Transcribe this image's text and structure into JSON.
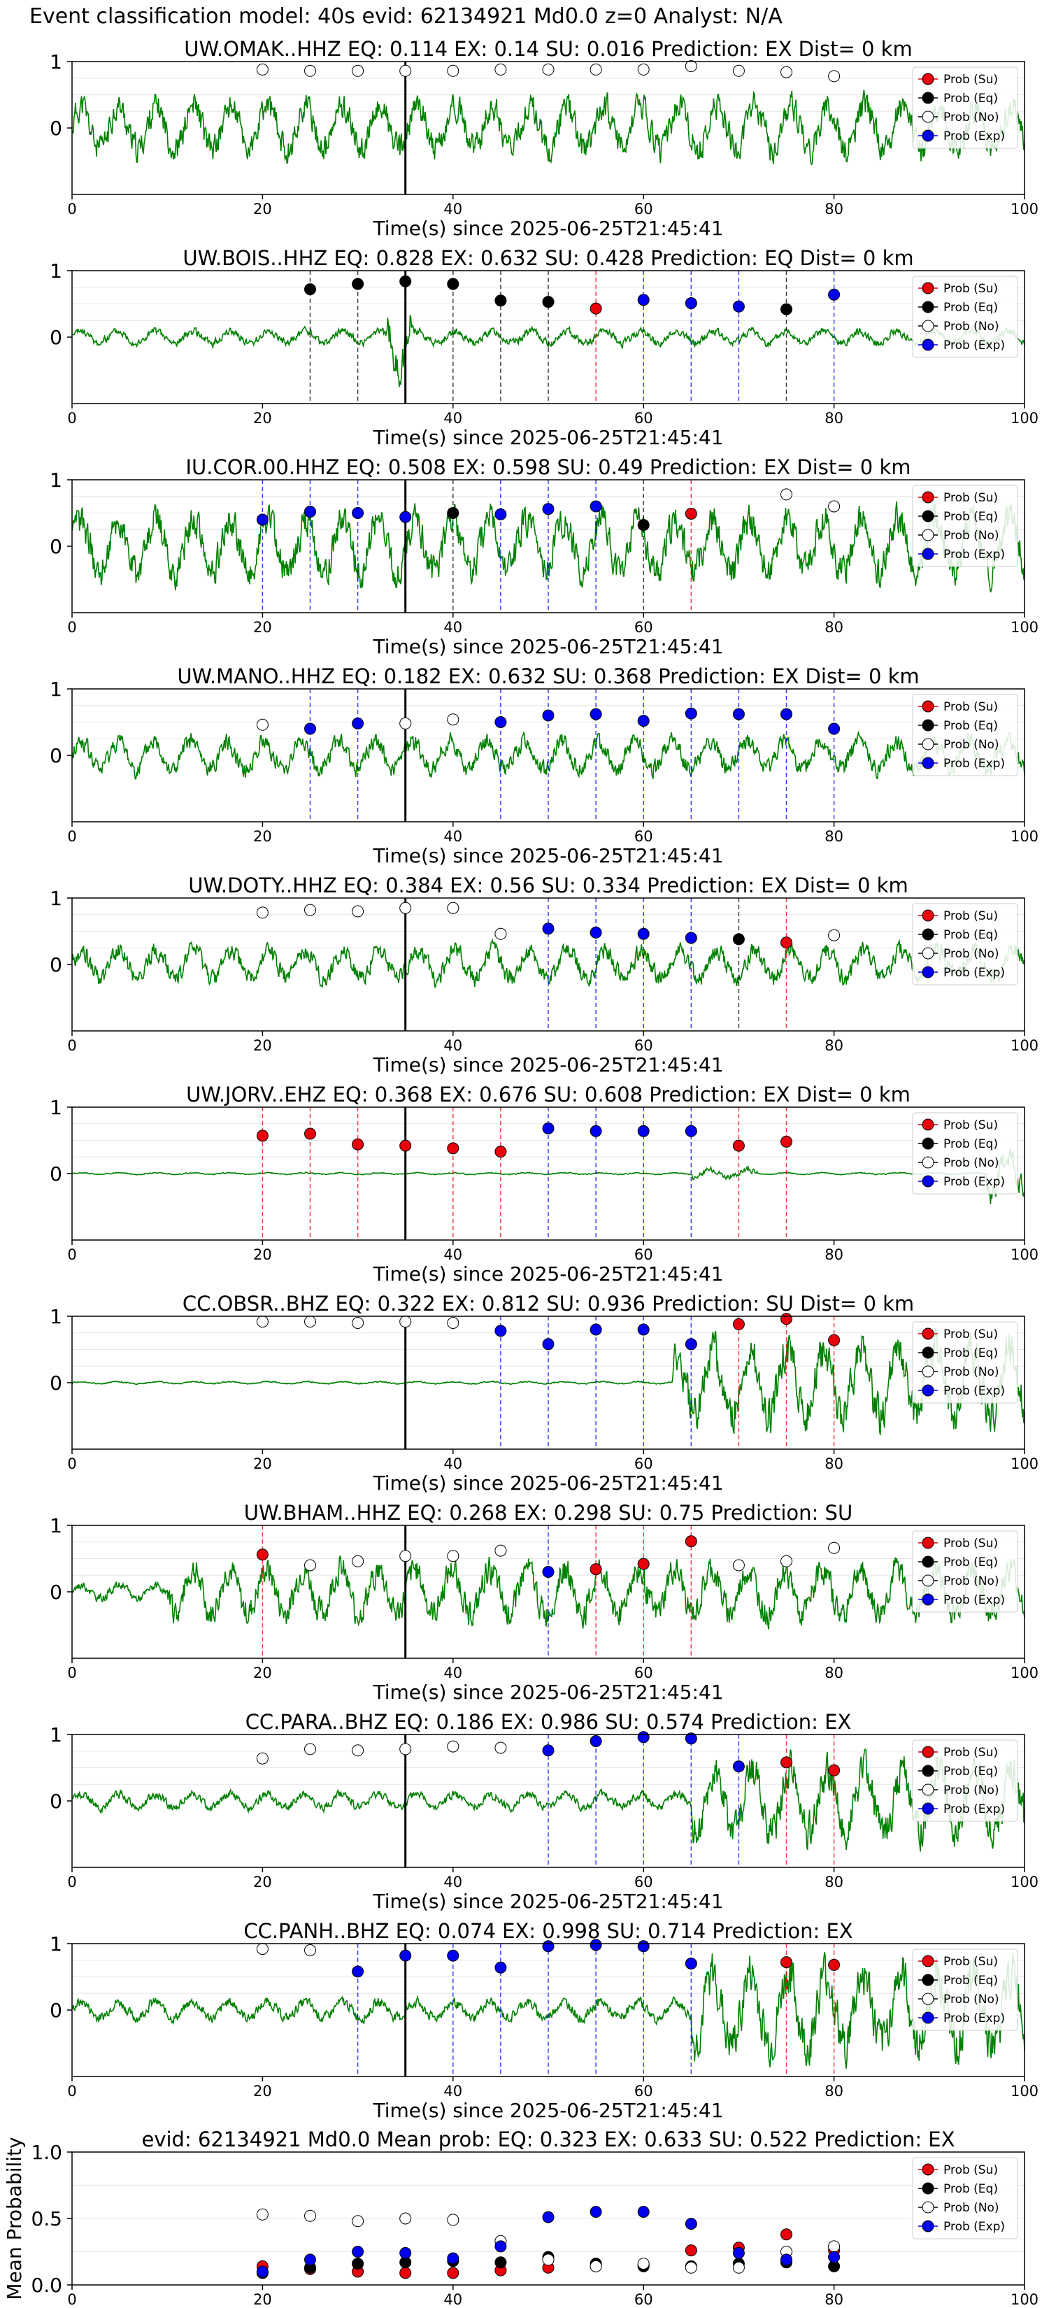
{
  "figure": {
    "suptitle": "Event classification model: 40s evid: 62134921 Md0.0 z=0 Analyst: N/A"
  },
  "legend_labels": [
    "Prob (Su)",
    "Prob (Eq)",
    "Prob (No)",
    "Prob (Exp)"
  ],
  "colors": {
    "Su": "#e8000b",
    "Eq": "#000000",
    "No": "#ffffff",
    "Exp": "#0000ee",
    "trace": "#008000",
    "event_line": "#000000"
  },
  "chart_data": [
    {
      "type": "scatter",
      "title": "UW.OMAK..HHZ   EQ: 0.114  EX: 0.14  SU: 0.016   Prediction: EX    Dist= 0 km",
      "xlabel": "Time(s) since 2025-06-25T21:45:41",
      "xlim": [
        0,
        100
      ],
      "ylim": [
        -1,
        1
      ],
      "yticks": [
        "1",
        "0"
      ],
      "xticks": [
        "0",
        "20",
        "40",
        "60",
        "80",
        "100"
      ],
      "event_time": 35,
      "waveform": {
        "style": "noisy",
        "amplitude": 0.55,
        "seed": 11
      },
      "points": [
        {
          "x": 20,
          "y": 0.88,
          "cls": "No"
        },
        {
          "x": 25,
          "y": 0.86,
          "cls": "No"
        },
        {
          "x": 30,
          "y": 0.86,
          "cls": "No"
        },
        {
          "x": 35,
          "y": 0.86,
          "cls": "No"
        },
        {
          "x": 40,
          "y": 0.86,
          "cls": "No"
        },
        {
          "x": 45,
          "y": 0.88,
          "cls": "No"
        },
        {
          "x": 50,
          "y": 0.88,
          "cls": "No"
        },
        {
          "x": 55,
          "y": 0.88,
          "cls": "No"
        },
        {
          "x": 60,
          "y": 0.88,
          "cls": "No"
        },
        {
          "x": 65,
          "y": 0.93,
          "cls": "No"
        },
        {
          "x": 70,
          "y": 0.86,
          "cls": "No"
        },
        {
          "x": 75,
          "y": 0.84,
          "cls": "No"
        },
        {
          "x": 80,
          "y": 0.78,
          "cls": "No"
        }
      ]
    },
    {
      "type": "scatter",
      "title": "UW.BOIS..HHZ   EQ: 0.828  EX: 0.632  SU: 0.428   Prediction: EQ    Dist= 0 km",
      "xlabel": "Time(s) since 2025-06-25T21:45:41",
      "xlim": [
        0,
        100
      ],
      "ylim": [
        -1,
        1
      ],
      "yticks": [
        "1",
        "0"
      ],
      "xticks": [
        "0",
        "20",
        "40",
        "60",
        "80",
        "100"
      ],
      "event_time": 35,
      "waveform": {
        "style": "quiet-burst",
        "amplitude": 0.15,
        "seed": 23
      },
      "points": [
        {
          "x": 25,
          "y": 0.72,
          "cls": "Eq"
        },
        {
          "x": 30,
          "y": 0.8,
          "cls": "Eq"
        },
        {
          "x": 35,
          "y": 0.84,
          "cls": "Eq"
        },
        {
          "x": 40,
          "y": 0.8,
          "cls": "Eq"
        },
        {
          "x": 45,
          "y": 0.55,
          "cls": "Eq"
        },
        {
          "x": 50,
          "y": 0.53,
          "cls": "Eq"
        },
        {
          "x": 55,
          "y": 0.43,
          "cls": "Su"
        },
        {
          "x": 60,
          "y": 0.56,
          "cls": "Exp"
        },
        {
          "x": 65,
          "y": 0.51,
          "cls": "Exp"
        },
        {
          "x": 70,
          "y": 0.46,
          "cls": "Exp"
        },
        {
          "x": 75,
          "y": 0.42,
          "cls": "Eq"
        },
        {
          "x": 80,
          "y": 0.64,
          "cls": "Exp"
        }
      ]
    },
    {
      "type": "scatter",
      "title": "IU.COR.00.HHZ   EQ: 0.508  EX: 0.598  SU: 0.49   Prediction: EX    Dist= 0 km",
      "xlabel": "Time(s) since 2025-06-25T21:45:41",
      "xlim": [
        0,
        100
      ],
      "ylim": [
        -1,
        1
      ],
      "yticks": [
        "1",
        "0"
      ],
      "xticks": [
        "0",
        "20",
        "40",
        "60",
        "80",
        "100"
      ],
      "event_time": 35,
      "waveform": {
        "style": "noisy",
        "amplitude": 0.65,
        "seed": 37
      },
      "points": [
        {
          "x": 20,
          "y": 0.4,
          "cls": "Exp"
        },
        {
          "x": 25,
          "y": 0.52,
          "cls": "Exp"
        },
        {
          "x": 30,
          "y": 0.5,
          "cls": "Exp"
        },
        {
          "x": 35,
          "y": 0.44,
          "cls": "Exp"
        },
        {
          "x": 40,
          "y": 0.5,
          "cls": "Eq"
        },
        {
          "x": 45,
          "y": 0.48,
          "cls": "Exp"
        },
        {
          "x": 50,
          "y": 0.56,
          "cls": "Exp"
        },
        {
          "x": 55,
          "y": 0.6,
          "cls": "Exp"
        },
        {
          "x": 60,
          "y": 0.32,
          "cls": "Eq"
        },
        {
          "x": 65,
          "y": 0.49,
          "cls": "Su"
        },
        {
          "x": 75,
          "y": 0.78,
          "cls": "No"
        },
        {
          "x": 80,
          "y": 0.6,
          "cls": "No"
        }
      ]
    },
    {
      "type": "scatter",
      "title": "UW.MANO..HHZ   EQ: 0.182  EX: 0.632  SU: 0.368   Prediction: EX    Dist= 0 km",
      "xlabel": "Time(s) since 2025-06-25T21:45:41",
      "xlim": [
        0,
        100
      ],
      "ylim": [
        -1,
        1
      ],
      "yticks": [
        "1",
        "0"
      ],
      "xticks": [
        "0",
        "20",
        "40",
        "60",
        "80",
        "100"
      ],
      "event_time": 35,
      "waveform": {
        "style": "noisy",
        "amplitude": 0.35,
        "seed": 41
      },
      "points": [
        {
          "x": 20,
          "y": 0.46,
          "cls": "No"
        },
        {
          "x": 25,
          "y": 0.4,
          "cls": "Exp"
        },
        {
          "x": 30,
          "y": 0.48,
          "cls": "Exp"
        },
        {
          "x": 35,
          "y": 0.48,
          "cls": "No"
        },
        {
          "x": 40,
          "y": 0.54,
          "cls": "No"
        },
        {
          "x": 45,
          "y": 0.5,
          "cls": "Exp"
        },
        {
          "x": 50,
          "y": 0.6,
          "cls": "Exp"
        },
        {
          "x": 55,
          "y": 0.62,
          "cls": "Exp"
        },
        {
          "x": 60,
          "y": 0.52,
          "cls": "Exp"
        },
        {
          "x": 65,
          "y": 0.63,
          "cls": "Exp"
        },
        {
          "x": 70,
          "y": 0.62,
          "cls": "Exp"
        },
        {
          "x": 75,
          "y": 0.62,
          "cls": "Exp"
        },
        {
          "x": 80,
          "y": 0.4,
          "cls": "Exp"
        }
      ]
    },
    {
      "type": "scatter",
      "title": "UW.DOTY..HHZ   EQ: 0.384  EX: 0.56  SU: 0.334   Prediction: EX    Dist= 0 km",
      "xlabel": "Time(s) since 2025-06-25T21:45:41",
      "xlim": [
        0,
        100
      ],
      "ylim": [
        -1,
        1
      ],
      "yticks": [
        "1",
        "0"
      ],
      "xticks": [
        "0",
        "20",
        "40",
        "60",
        "80",
        "100"
      ],
      "event_time": 35,
      "waveform": {
        "style": "noisy",
        "amplitude": 0.35,
        "seed": 53
      },
      "points": [
        {
          "x": 20,
          "y": 0.78,
          "cls": "No"
        },
        {
          "x": 25,
          "y": 0.82,
          "cls": "No"
        },
        {
          "x": 30,
          "y": 0.8,
          "cls": "No"
        },
        {
          "x": 35,
          "y": 0.85,
          "cls": "No"
        },
        {
          "x": 40,
          "y": 0.85,
          "cls": "No"
        },
        {
          "x": 45,
          "y": 0.46,
          "cls": "No"
        },
        {
          "x": 50,
          "y": 0.54,
          "cls": "Exp"
        },
        {
          "x": 55,
          "y": 0.48,
          "cls": "Exp"
        },
        {
          "x": 60,
          "y": 0.46,
          "cls": "Exp"
        },
        {
          "x": 65,
          "y": 0.4,
          "cls": "Exp"
        },
        {
          "x": 70,
          "y": 0.38,
          "cls": "Eq"
        },
        {
          "x": 75,
          "y": 0.33,
          "cls": "Su"
        },
        {
          "x": 80,
          "y": 0.44,
          "cls": "No"
        }
      ]
    },
    {
      "type": "scatter",
      "title": "UW.JORV..EHZ   EQ: 0.368  EX: 0.676  SU: 0.608   Prediction: EX    Dist= 0 km",
      "xlabel": "Time(s) since 2025-06-25T21:45:41",
      "xlim": [
        0,
        100
      ],
      "ylim": [
        -1,
        1
      ],
      "yticks": [
        "1",
        "0"
      ],
      "xticks": [
        "0",
        "20",
        "40",
        "60",
        "80",
        "100"
      ],
      "event_time": 35,
      "waveform": {
        "style": "flat-late",
        "amplitude": 0.02,
        "seed": 67
      },
      "points": [
        {
          "x": 20,
          "y": 0.57,
          "cls": "Su"
        },
        {
          "x": 25,
          "y": 0.6,
          "cls": "Su"
        },
        {
          "x": 30,
          "y": 0.44,
          "cls": "Su"
        },
        {
          "x": 35,
          "y": 0.42,
          "cls": "Su"
        },
        {
          "x": 40,
          "y": 0.38,
          "cls": "Su"
        },
        {
          "x": 45,
          "y": 0.33,
          "cls": "Su"
        },
        {
          "x": 50,
          "y": 0.68,
          "cls": "Exp"
        },
        {
          "x": 55,
          "y": 0.64,
          "cls": "Exp"
        },
        {
          "x": 60,
          "y": 0.64,
          "cls": "Exp"
        },
        {
          "x": 65,
          "y": 0.64,
          "cls": "Exp"
        },
        {
          "x": 70,
          "y": 0.42,
          "cls": "Su"
        },
        {
          "x": 75,
          "y": 0.48,
          "cls": "Su"
        }
      ]
    },
    {
      "type": "scatter",
      "title": "CC.OBSR..BHZ   EQ: 0.322  EX: 0.812  SU: 0.936   Prediction: SU    Dist= 0 km",
      "xlabel": "Time(s) since 2025-06-25T21:45:41",
      "xlim": [
        0,
        100
      ],
      "ylim": [
        -1,
        1
      ],
      "yticks": [
        "1",
        "0"
      ],
      "xticks": [
        "0",
        "20",
        "40",
        "60",
        "80",
        "100"
      ],
      "event_time": 35,
      "waveform": {
        "style": "flat-burst",
        "amplitude": 0.8,
        "seed": 71
      },
      "points": [
        {
          "x": 20,
          "y": 0.92,
          "cls": "No"
        },
        {
          "x": 25,
          "y": 0.92,
          "cls": "No"
        },
        {
          "x": 30,
          "y": 0.9,
          "cls": "No"
        },
        {
          "x": 35,
          "y": 0.92,
          "cls": "No"
        },
        {
          "x": 40,
          "y": 0.9,
          "cls": "No"
        },
        {
          "x": 45,
          "y": 0.78,
          "cls": "Exp"
        },
        {
          "x": 50,
          "y": 0.58,
          "cls": "Exp"
        },
        {
          "x": 55,
          "y": 0.8,
          "cls": "Exp"
        },
        {
          "x": 60,
          "y": 0.8,
          "cls": "Exp"
        },
        {
          "x": 65,
          "y": 0.58,
          "cls": "Exp"
        },
        {
          "x": 70,
          "y": 0.88,
          "cls": "Su"
        },
        {
          "x": 75,
          "y": 0.96,
          "cls": "Su"
        },
        {
          "x": 80,
          "y": 0.64,
          "cls": "Su"
        }
      ]
    },
    {
      "type": "scatter",
      "title": "UW.BHAM..HHZ   EQ: 0.268  EX: 0.298  SU: 0.75   Prediction: SU",
      "xlabel": "Time(s) since 2025-06-25T21:45:41",
      "xlim": [
        0,
        100
      ],
      "ylim": [
        -1,
        1
      ],
      "yticks": [
        "1",
        "0"
      ],
      "xticks": [
        "0",
        "20",
        "40",
        "60",
        "80",
        "100"
      ],
      "event_time": 35,
      "waveform": {
        "style": "busy",
        "amplitude": 0.55,
        "seed": 83
      },
      "points": [
        {
          "x": 20,
          "y": 0.56,
          "cls": "Su"
        },
        {
          "x": 25,
          "y": 0.4,
          "cls": "No"
        },
        {
          "x": 30,
          "y": 0.46,
          "cls": "No"
        },
        {
          "x": 35,
          "y": 0.54,
          "cls": "No"
        },
        {
          "x": 40,
          "y": 0.54,
          "cls": "No"
        },
        {
          "x": 45,
          "y": 0.62,
          "cls": "No"
        },
        {
          "x": 50,
          "y": 0.3,
          "cls": "Exp"
        },
        {
          "x": 55,
          "y": 0.34,
          "cls": "Su"
        },
        {
          "x": 60,
          "y": 0.42,
          "cls": "Su"
        },
        {
          "x": 65,
          "y": 0.76,
          "cls": "Su"
        },
        {
          "x": 70,
          "y": 0.4,
          "cls": "No"
        },
        {
          "x": 75,
          "y": 0.46,
          "cls": "No"
        },
        {
          "x": 80,
          "y": 0.66,
          "cls": "No"
        }
      ]
    },
    {
      "type": "scatter",
      "title": "CC.PARA..BHZ   EQ: 0.186  EX: 0.986  SU: 0.574   Prediction: EX",
      "xlabel": "Time(s) since 2025-06-25T21:45:41",
      "xlim": [
        0,
        100
      ],
      "ylim": [
        -1,
        1
      ],
      "yticks": [
        "1",
        "0"
      ],
      "xticks": [
        "0",
        "20",
        "40",
        "60",
        "80",
        "100"
      ],
      "event_time": 35,
      "waveform": {
        "style": "low-burst",
        "amplitude": 0.75,
        "seed": 97
      },
      "points": [
        {
          "x": 20,
          "y": 0.64,
          "cls": "No"
        },
        {
          "x": 25,
          "y": 0.78,
          "cls": "No"
        },
        {
          "x": 30,
          "y": 0.76,
          "cls": "No"
        },
        {
          "x": 35,
          "y": 0.78,
          "cls": "No"
        },
        {
          "x": 40,
          "y": 0.82,
          "cls": "No"
        },
        {
          "x": 45,
          "y": 0.8,
          "cls": "No"
        },
        {
          "x": 50,
          "y": 0.76,
          "cls": "Exp"
        },
        {
          "x": 55,
          "y": 0.9,
          "cls": "Exp"
        },
        {
          "x": 60,
          "y": 0.96,
          "cls": "Exp"
        },
        {
          "x": 65,
          "y": 0.94,
          "cls": "Exp"
        },
        {
          "x": 70,
          "y": 0.52,
          "cls": "Exp"
        },
        {
          "x": 75,
          "y": 0.58,
          "cls": "Su"
        },
        {
          "x": 80,
          "y": 0.46,
          "cls": "Su"
        }
      ]
    },
    {
      "type": "scatter",
      "title": "CC.PANH..BHZ   EQ: 0.074  EX: 0.998  SU: 0.714   Prediction: EX",
      "xlabel": "Time(s) since 2025-06-25T21:45:41",
      "xlim": [
        0,
        100
      ],
      "ylim": [
        -1,
        1
      ],
      "yticks": [
        "1",
        "0"
      ],
      "xticks": [
        "0",
        "20",
        "40",
        "60",
        "80",
        "100"
      ],
      "event_time": 35,
      "waveform": {
        "style": "low-burst",
        "amplitude": 0.9,
        "seed": 101
      },
      "points": [
        {
          "x": 20,
          "y": 0.92,
          "cls": "No"
        },
        {
          "x": 25,
          "y": 0.9,
          "cls": "No"
        },
        {
          "x": 30,
          "y": 0.58,
          "cls": "Exp"
        },
        {
          "x": 35,
          "y": 0.82,
          "cls": "Exp"
        },
        {
          "x": 40,
          "y": 0.82,
          "cls": "Exp"
        },
        {
          "x": 45,
          "y": 0.64,
          "cls": "Exp"
        },
        {
          "x": 50,
          "y": 0.96,
          "cls": "Exp"
        },
        {
          "x": 55,
          "y": 0.98,
          "cls": "Exp"
        },
        {
          "x": 60,
          "y": 0.96,
          "cls": "Exp"
        },
        {
          "x": 65,
          "y": 0.7,
          "cls": "Exp"
        },
        {
          "x": 75,
          "y": 0.72,
          "cls": "Su"
        },
        {
          "x": 80,
          "y": 0.68,
          "cls": "Su"
        }
      ]
    },
    {
      "type": "scatter",
      "title": "evid: 62134921   Md0.0   Mean prob:    EQ: 0.323  EX: 0.633  SU: 0.522   Prediction: EX",
      "xlabel": "",
      "ylabel": "Mean Probability",
      "xlim": [
        0,
        100
      ],
      "ylim": [
        0,
        1
      ],
      "yticks": [
        "0.0",
        "0.5",
        "1.0"
      ],
      "xticks": [
        "0",
        "20",
        "40",
        "60",
        "80",
        "100"
      ],
      "series": [
        {
          "name": "Prob (Su)",
          "cls": "Su",
          "x": [
            20,
            25,
            30,
            35,
            40,
            45,
            50,
            55,
            60,
            65,
            70,
            75,
            80
          ],
          "y": [
            0.14,
            0.12,
            0.1,
            0.09,
            0.09,
            0.11,
            0.13,
            0.14,
            0.15,
            0.26,
            0.28,
            0.38,
            0.26
          ]
        },
        {
          "name": "Prob (Eq)",
          "cls": "Eq",
          "x": [
            20,
            25,
            30,
            35,
            40,
            45,
            50,
            55,
            60,
            65,
            70,
            75,
            80
          ],
          "y": [
            0.09,
            0.13,
            0.16,
            0.17,
            0.18,
            0.17,
            0.21,
            0.16,
            0.14,
            0.14,
            0.16,
            0.17,
            0.14
          ]
        },
        {
          "name": "Prob (No)",
          "cls": "No",
          "x": [
            20,
            25,
            30,
            35,
            40,
            45,
            50,
            55,
            60,
            65,
            70,
            75,
            80
          ],
          "y": [
            0.53,
            0.52,
            0.48,
            0.5,
            0.49,
            0.33,
            0.19,
            0.14,
            0.16,
            0.13,
            0.13,
            0.25,
            0.29
          ]
        },
        {
          "name": "Prob (Exp)",
          "cls": "Exp",
          "x": [
            20,
            25,
            30,
            35,
            40,
            45,
            50,
            55,
            60,
            65,
            70,
            75,
            80
          ],
          "y": [
            0.1,
            0.19,
            0.25,
            0.24,
            0.2,
            0.29,
            0.51,
            0.55,
            0.55,
            0.46,
            0.24,
            0.19,
            0.21
          ]
        }
      ]
    }
  ]
}
